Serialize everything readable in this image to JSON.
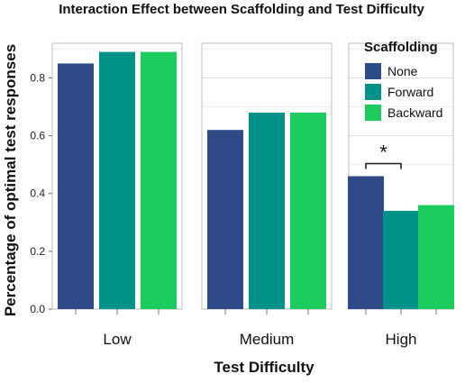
{
  "chart_data": {
    "type": "bar",
    "title": "Interaction Effect between Scaffolding and Test Difficulty",
    "xlabel": "Test Difficulty",
    "ylabel": "Percentage of optimal test responses",
    "ylim": [
      0,
      0.92
    ],
    "yticks": [
      "0.0",
      "0.2",
      "0.4",
      "0.6",
      "0.8"
    ],
    "grid": true,
    "legend": {
      "title": "Scaffolding",
      "position": "right"
    },
    "categories": [
      "Low",
      "Medium",
      "High"
    ],
    "series": [
      {
        "name": "None",
        "color": "#2e4a87",
        "values": [
          0.85,
          0.62,
          0.46
        ]
      },
      {
        "name": "Forward",
        "color": "#009188",
        "values": [
          0.89,
          0.68,
          0.34
        ]
      },
      {
        "name": "Backward",
        "color": "#1ccc5f",
        "values": [
          0.89,
          0.68,
          0.36
        ]
      }
    ],
    "annotations": [
      {
        "text": "*",
        "category": "High",
        "between": [
          "None",
          "Forward"
        ]
      }
    ]
  }
}
